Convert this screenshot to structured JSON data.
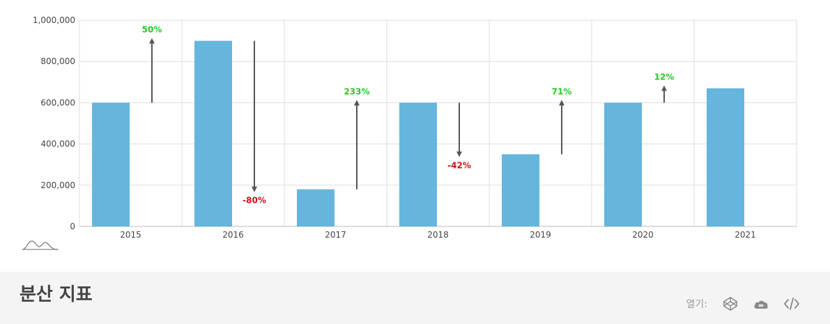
{
  "chart_data": {
    "type": "bar",
    "title": "",
    "xlabel": "",
    "ylabel": "",
    "categories": [
      "2015",
      "2016",
      "2017",
      "2018",
      "2019",
      "2020",
      "2021"
    ],
    "values": [
      600000,
      900000,
      180000,
      600000,
      350000,
      600000,
      670000
    ],
    "ylim": [
      0,
      1000000
    ],
    "y_ticks": [
      "0",
      "200,000",
      "400,000",
      "600,000",
      "800,000",
      "1,000,000"
    ],
    "y_tick_values": [
      0,
      200000,
      400000,
      600000,
      800000,
      1000000
    ],
    "grid": true,
    "bar_color": "#66b5dc",
    "changes": [
      {
        "from": 600000,
        "to": 900000,
        "label": "50%"
      },
      {
        "from": 900000,
        "to": 180000,
        "label": "-80%"
      },
      {
        "from": 180000,
        "to": 600000,
        "label": "233%"
      },
      {
        "from": 600000,
        "to": 350000,
        "label": "-42%"
      },
      {
        "from": 350000,
        "to": 600000,
        "label": "71%"
      },
      {
        "from": 600000,
        "to": 670000,
        "label": "12%"
      }
    ],
    "colors": {
      "increase": "#22cc22",
      "decrease": "#cc1111",
      "arrow": "#555555"
    }
  },
  "footer": {
    "title": "분산 지표",
    "open_label": "열기:",
    "icons": [
      "codepen-icon",
      "cloud-icon",
      "code-icon"
    ]
  }
}
